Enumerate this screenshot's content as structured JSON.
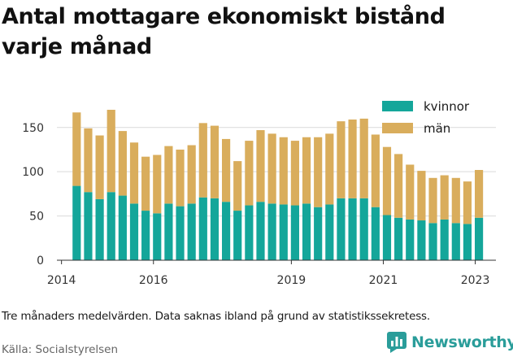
{
  "title": "Antal mottagare ekonomiskt bistånd varje månad",
  "note": "Tre månaders medelvärden. Data saknas ibland på grund av statistikssekretess.",
  "source": "Källa: Socialstyrelsen",
  "brand": {
    "name": "Newsworthy",
    "color": "#2a9d9a",
    "logo": "bar-chart-logo-icon"
  },
  "chart_data": {
    "type": "bar",
    "stacked": true,
    "xlabel": "",
    "ylabel": "",
    "ylim": [
      0,
      170
    ],
    "yticks": [
      0,
      50,
      100,
      150
    ],
    "xlim": [
      2013.9,
      2023.45
    ],
    "xticks": [
      2014,
      2016,
      2019,
      2021,
      2023
    ],
    "xtick_labels": [
      "2014",
      "2016",
      "2019",
      "2021",
      "2023"
    ],
    "grid": "horizontal",
    "legend_position": "top-right",
    "x": [
      2014.33,
      2014.58,
      2014.83,
      2015.08,
      2015.33,
      2015.58,
      2015.83,
      2016.08,
      2016.33,
      2016.58,
      2016.83,
      2017.08,
      2017.33,
      2017.58,
      2017.83,
      2018.08,
      2018.33,
      2018.58,
      2018.83,
      2019.08,
      2019.33,
      2019.58,
      2019.83,
      2020.08,
      2020.33,
      2020.58,
      2020.83,
      2021.08,
      2021.33,
      2021.58,
      2021.83,
      2022.08,
      2022.33,
      2022.58,
      2022.83,
      2023.08
    ],
    "series": [
      {
        "name": "kvinnor",
        "color": "#14a69a",
        "values": [
          84,
          77,
          69,
          77,
          73,
          64,
          56,
          53,
          64,
          61,
          64,
          71,
          70,
          66,
          56,
          62,
          66,
          64,
          63,
          62,
          64,
          60,
          63,
          70,
          70,
          70,
          60,
          51,
          48,
          46,
          45,
          42,
          46,
          42,
          41,
          48
        ]
      },
      {
        "name": "män",
        "color": "#d9ad5c",
        "values": [
          83,
          72,
          72,
          93,
          73,
          69,
          61,
          66,
          65,
          64,
          66,
          84,
          82,
          71,
          56,
          73,
          81,
          79,
          76,
          73,
          75,
          79,
          80,
          87,
          89,
          90,
          82,
          77,
          72,
          62,
          56,
          51,
          50,
          51,
          48,
          54
        ]
      }
    ]
  }
}
